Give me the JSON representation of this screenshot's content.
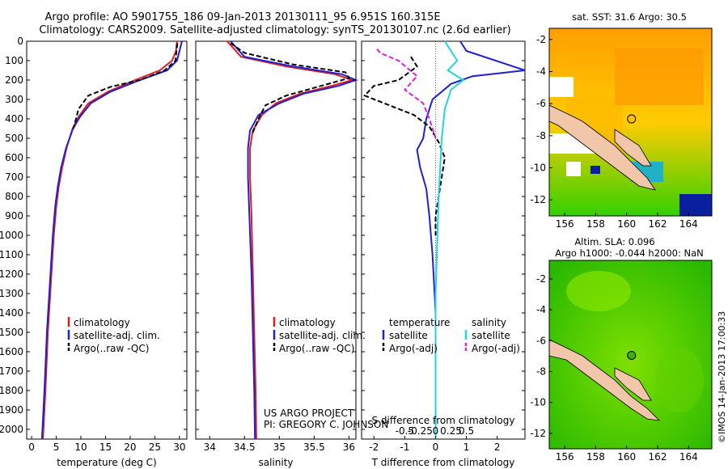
{
  "header": {
    "title_line1": "Argo profile: AO 5901755_186 09-Jan-2013 20130111_95 6.951S 160.315E",
    "title_line2": "Climatology: CARS2009. Satellite-adjusted climatology: synTS_20130107.nc (2.6d earlier)"
  },
  "colors": {
    "climatology": "#e41a1c",
    "satellite": "#1f1fd6",
    "argo": "#000000",
    "salinity_satellite": "#22d3e6",
    "salinity_argo": "#e020d0",
    "land": "#f2c6a8"
  },
  "credit": {
    "line1": "US ARGO PROJECT",
    "line2": "PI: GREGORY C. JOHNSON"
  },
  "footer_stamp": "©IMOS 14-Jan-2013 17:00:33",
  "chart_data": [
    {
      "id": "temperature",
      "type": "line",
      "xlabel": "temperature (deg C)",
      "ylabel": "",
      "xlim": [
        -1,
        31.5
      ],
      "ylim": [
        2050,
        0
      ],
      "xticks": [
        0,
        5,
        10,
        15,
        20,
        25,
        30
      ],
      "yticks": [
        0,
        100,
        200,
        300,
        400,
        500,
        600,
        700,
        800,
        900,
        1000,
        1100,
        1200,
        1300,
        1400,
        1500,
        1600,
        1700,
        1800,
        1900,
        2000
      ],
      "legend": [
        "climatology",
        "satellite-adj. clim.",
        "Argo(..raw -QC)"
      ],
      "series": [
        {
          "name": "climatology",
          "style": "solid",
          "color": "#e41a1c",
          "x": [
            29.5,
            29.3,
            28.5,
            26,
            21,
            15.5,
            11.5,
            9.5,
            8.3,
            7.1,
            6.2,
            5.5,
            5.0,
            4.5,
            3.3,
            2.8,
            2.3
          ],
          "y": [
            0,
            50,
            100,
            150,
            200,
            260,
            320,
            390,
            450,
            550,
            650,
            750,
            850,
            1000,
            1500,
            1800,
            2050
          ]
        },
        {
          "name": "satellite-adj. clim.",
          "style": "solid",
          "color": "#1f1fd6",
          "x": [
            30.5,
            30.0,
            29.5,
            27.5,
            22,
            16,
            12,
            9.8,
            8.4,
            7.0,
            6.0,
            5.3,
            4.8,
            4.3,
            3.1,
            2.6,
            2.1
          ],
          "y": [
            0,
            50,
            100,
            150,
            200,
            260,
            320,
            390,
            450,
            550,
            650,
            750,
            850,
            1000,
            1500,
            1800,
            2050
          ]
        },
        {
          "name": "Argo(..raw -QC)",
          "style": "dashed",
          "color": "#000000",
          "x": [
            29.6,
            29.4,
            29.2,
            27,
            22,
            16,
            11.5,
            9.5,
            8.5
          ],
          "y": [
            10,
            50,
            100,
            150,
            200,
            235,
            280,
            350,
            450
          ]
        }
      ]
    },
    {
      "id": "salinity",
      "type": "line",
      "xlabel": "salinity",
      "ylabel": "",
      "xlim": [
        33.8,
        36.1
      ],
      "ylim": [
        2050,
        0
      ],
      "xticks": [
        34,
        34.5,
        35,
        35.5,
        36
      ],
      "legend": [
        "climatology",
        "satellite-adj. clim.",
        "Argo(..raw -QC)"
      ],
      "series": [
        {
          "name": "climatology",
          "style": "solid",
          "color": "#e41a1c",
          "x": [
            34.25,
            34.45,
            35.1,
            35.8,
            36.05,
            35.75,
            35.3,
            34.95,
            34.75,
            34.62,
            34.58,
            34.58,
            34.6,
            34.62,
            34.64,
            34.66,
            34.67
          ],
          "y": [
            0,
            80,
            130,
            170,
            200,
            230,
            270,
            320,
            380,
            460,
            550,
            700,
            900,
            1200,
            1500,
            1800,
            2050
          ]
        },
        {
          "name": "satellite-adj. clim.",
          "style": "solid",
          "color": "#1f1fd6",
          "x": [
            34.3,
            34.5,
            35.2,
            35.9,
            36.1,
            35.85,
            35.35,
            35.0,
            34.7,
            34.58,
            34.55,
            34.55,
            34.57,
            34.6,
            34.62,
            34.64,
            34.65
          ],
          "y": [
            0,
            80,
            130,
            170,
            200,
            230,
            270,
            320,
            380,
            460,
            550,
            700,
            900,
            1200,
            1500,
            1800,
            2050
          ]
        },
        {
          "name": "Argo(..raw -QC)",
          "style": "dashed",
          "color": "#000000",
          "x": [
            34.3,
            34.5,
            35.2,
            35.95,
            36.0,
            35.6,
            35.1,
            34.8,
            34.7,
            34.62
          ],
          "y": [
            10,
            60,
            120,
            160,
            190,
            230,
            280,
            330,
            400,
            470
          ]
        }
      ]
    },
    {
      "id": "difference",
      "type": "line",
      "xlabel": "T difference from climatology",
      "xlabel2": "S difference from climatology",
      "xlim": [
        -2.4,
        2.9
      ],
      "ylim": [
        2050,
        0
      ],
      "xticks": [
        -2,
        -1,
        0,
        1,
        2
      ],
      "xticks_s": [
        "-0.5",
        "-0.25",
        "0",
        "0.25",
        "0.5"
      ],
      "legend_headers": [
        "temperature",
        "salinity"
      ],
      "legend": [
        "satellite",
        "Argo(-adj)",
        "satellite",
        "Argo(-adj)"
      ],
      "series": [
        {
          "name": "satellite",
          "variable": "temperature",
          "style": "solid",
          "color": "#1f1fd6",
          "x": [
            0.8,
            1.0,
            2.9,
            1.2,
            0.5,
            -0.1,
            -0.3,
            -0.4,
            -0.6,
            -0.5,
            -0.3,
            -0.2,
            -0.1,
            0.0,
            0.0,
            0.0,
            0.0
          ],
          "y": [
            0,
            50,
            150,
            180,
            220,
            300,
            400,
            500,
            560,
            650,
            760,
            900,
            1100,
            1400,
            1600,
            1800,
            2050
          ]
        },
        {
          "name": "Argo(-adj)",
          "variable": "temperature",
          "style": "dashed",
          "color": "#000000",
          "x": [
            -0.8,
            -0.6,
            -1.2,
            -2.0,
            -2.3,
            -1.5,
            -0.7,
            -0.2,
            0.1,
            0.3,
            0.2,
            0.1,
            0.0,
            0.0
          ],
          "y": [
            80,
            130,
            200,
            230,
            280,
            330,
            380,
            440,
            520,
            600,
            700,
            800,
            900,
            1000
          ]
        },
        {
          "name": "satellite",
          "variable": "salinity",
          "style": "solid",
          "color": "#22d3e6",
          "x": [
            0.3,
            0.7,
            0.4,
            0.9,
            0.5,
            0.3,
            0.2,
            0.1,
            0.0,
            0.0
          ],
          "y": [
            0,
            100,
            150,
            200,
            250,
            350,
            500,
            800,
            1300,
            2050
          ]
        },
        {
          "name": "Argo(-adj)",
          "variable": "salinity",
          "style": "dashed",
          "color": "#e020d0",
          "x": [
            -1.9,
            -1.8,
            -1.2,
            -0.6,
            -1.0,
            -0.4,
            -0.2,
            0.0
          ],
          "y": [
            40,
            60,
            100,
            180,
            250,
            320,
            400,
            500
          ]
        }
      ]
    },
    {
      "id": "sst-map",
      "type": "heatmap",
      "title": "sat. SST: 31.6 Argo: 30.5",
      "xlim": [
        155,
        165.5
      ],
      "ylim": [
        -13,
        -1.3
      ],
      "xticks": [
        156,
        158,
        160,
        162,
        164
      ],
      "yticks": [
        -2,
        -4,
        -6,
        -8,
        -10,
        -12
      ],
      "argo_position": {
        "lon": 160.315,
        "lat": -6.951
      }
    },
    {
      "id": "sla-map",
      "type": "heatmap",
      "title_line1": "Altim. SLA: 0.096",
      "title_line2": "Argo h1000: -0.044 h2000: NaN",
      "xlim": [
        155,
        165.5
      ],
      "ylim": [
        -13,
        -0.8
      ],
      "xticks": [
        156,
        158,
        160,
        162,
        164
      ],
      "yticks": [
        -2,
        -4,
        -6,
        -8,
        -10,
        -12
      ],
      "argo_position": {
        "lon": 160.315,
        "lat": -6.951
      }
    }
  ]
}
